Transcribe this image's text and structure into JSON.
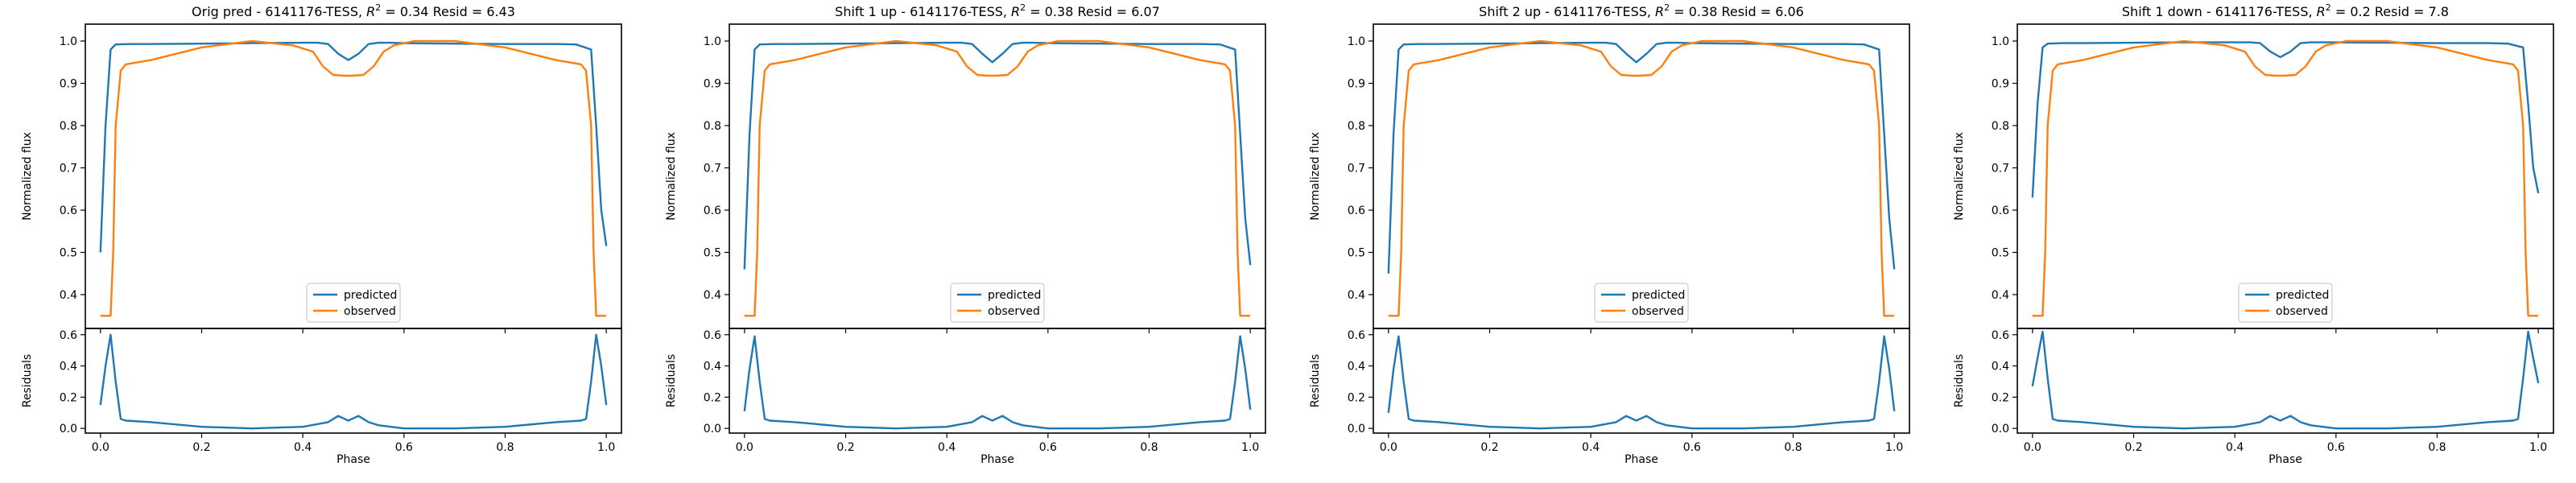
{
  "chart_data": [
    {
      "type": "line",
      "title": "Orig pred - 6141176-TESS, R² = 0.34 Resid = 6.43",
      "title_parts": {
        "prefix": "Orig pred - 6141176-TESS, ",
        "r2_symbol": "R",
        "r2_exp": "2",
        "r2_value": " = 0.34 Resid = 6.43"
      },
      "top": {
        "ylabel": "Normalized flux",
        "ylim": [
          0.32,
          1.04
        ],
        "yticks": [
          "0.4",
          "0.5",
          "0.6",
          "0.7",
          "0.8",
          "0.9",
          "1.0"
        ],
        "grid": false,
        "legend": {
          "placement": "lower center",
          "entries": [
            "predicted",
            "observed"
          ]
        },
        "series": [
          {
            "name": "predicted",
            "color": "#1f77b4",
            "x": [
              0.0,
              0.01,
              0.02,
              0.03,
              0.06,
              0.1,
              0.2,
              0.3,
              0.4,
              0.43,
              0.45,
              0.47,
              0.49,
              0.51,
              0.53,
              0.55,
              0.57,
              0.6,
              0.7,
              0.8,
              0.9,
              0.94,
              0.97,
              0.98,
              0.99,
              1.0
            ],
            "y": [
              0.5,
              0.8,
              0.98,
              0.992,
              0.993,
              0.993,
              0.994,
              0.995,
              0.996,
              0.996,
              0.993,
              0.97,
              0.955,
              0.97,
              0.993,
              0.996,
              0.996,
              0.995,
              0.994,
              0.993,
              0.993,
              0.992,
              0.98,
              0.8,
              0.6,
              0.515
            ]
          },
          {
            "name": "observed",
            "color": "#ff7f0e",
            "x": [
              0.0,
              0.02,
              0.025,
              0.03,
              0.04,
              0.05,
              0.1,
              0.2,
              0.3,
              0.38,
              0.42,
              0.44,
              0.46,
              0.48,
              0.5,
              0.52,
              0.54,
              0.56,
              0.58,
              0.62,
              0.7,
              0.8,
              0.9,
              0.95,
              0.96,
              0.97,
              0.975,
              0.98,
              1.0
            ],
            "y": [
              0.35,
              0.35,
              0.5,
              0.8,
              0.93,
              0.945,
              0.955,
              0.985,
              1.0,
              0.99,
              0.975,
              0.94,
              0.92,
              0.918,
              0.918,
              0.92,
              0.94,
              0.975,
              0.99,
              1.0,
              1.0,
              0.985,
              0.955,
              0.945,
              0.93,
              0.8,
              0.5,
              0.35,
              0.35
            ]
          }
        ]
      },
      "bottom": {
        "xlabel": "Phase",
        "ylabel": "Residuals",
        "xlim": [
          -0.03,
          1.03
        ],
        "ylim": [
          -0.03,
          0.64
        ],
        "xticks": [
          "0.0",
          "0.2",
          "0.4",
          "0.6",
          "0.8",
          "1.0"
        ],
        "yticks": [
          "0.0",
          "0.2",
          "0.4",
          "0.6"
        ],
        "series": [
          {
            "name": "residuals",
            "color": "#1f77b4",
            "x": [
              0.0,
              0.01,
              0.02,
              0.03,
              0.04,
              0.05,
              0.1,
              0.2,
              0.3,
              0.4,
              0.45,
              0.47,
              0.49,
              0.51,
              0.53,
              0.55,
              0.6,
              0.7,
              0.8,
              0.9,
              0.95,
              0.96,
              0.97,
              0.98,
              0.99,
              1.0
            ],
            "y": [
              0.15,
              0.4,
              0.6,
              0.3,
              0.06,
              0.05,
              0.04,
              0.01,
              0.0,
              0.01,
              0.04,
              0.08,
              0.05,
              0.08,
              0.04,
              0.02,
              0.0,
              0.0,
              0.01,
              0.04,
              0.05,
              0.06,
              0.3,
              0.6,
              0.4,
              0.15
            ]
          }
        ]
      }
    },
    {
      "type": "line",
      "title": "Shift 1 up - 6141176-TESS, R² = 0.38 Resid = 6.07",
      "title_parts": {
        "prefix": "Shift 1 up - 6141176-TESS, ",
        "r2_symbol": "R",
        "r2_exp": "2",
        "r2_value": " = 0.38 Resid = 6.07"
      },
      "top": {
        "ylabel": "Normalized flux",
        "ylim": [
          0.32,
          1.04
        ],
        "yticks": [
          "0.4",
          "0.5",
          "0.6",
          "0.7",
          "0.8",
          "0.9",
          "1.0"
        ],
        "grid": false,
        "legend": {
          "placement": "lower center",
          "entries": [
            "predicted",
            "observed"
          ]
        },
        "series": [
          {
            "name": "predicted",
            "color": "#1f77b4",
            "x": [
              0.0,
              0.01,
              0.02,
              0.03,
              0.06,
              0.1,
              0.2,
              0.3,
              0.4,
              0.43,
              0.45,
              0.47,
              0.49,
              0.51,
              0.53,
              0.55,
              0.57,
              0.6,
              0.7,
              0.8,
              0.9,
              0.94,
              0.97,
              0.98,
              0.99,
              1.0
            ],
            "y": [
              0.46,
              0.78,
              0.98,
              0.992,
              0.993,
              0.993,
              0.994,
              0.995,
              0.996,
              0.996,
              0.993,
              0.97,
              0.95,
              0.97,
              0.993,
              0.996,
              0.996,
              0.995,
              0.994,
              0.993,
              0.993,
              0.992,
              0.98,
              0.78,
              0.58,
              0.47
            ]
          },
          {
            "name": "observed",
            "color": "#ff7f0e",
            "x": [
              0.0,
              0.02,
              0.025,
              0.03,
              0.04,
              0.05,
              0.1,
              0.2,
              0.3,
              0.38,
              0.42,
              0.44,
              0.46,
              0.48,
              0.5,
              0.52,
              0.54,
              0.56,
              0.58,
              0.62,
              0.7,
              0.8,
              0.9,
              0.95,
              0.96,
              0.97,
              0.975,
              0.98,
              1.0
            ],
            "y": [
              0.35,
              0.35,
              0.5,
              0.8,
              0.93,
              0.945,
              0.955,
              0.985,
              1.0,
              0.99,
              0.975,
              0.94,
              0.92,
              0.918,
              0.918,
              0.92,
              0.94,
              0.975,
              0.99,
              1.0,
              1.0,
              0.985,
              0.955,
              0.945,
              0.93,
              0.8,
              0.5,
              0.35,
              0.35
            ]
          }
        ]
      },
      "bottom": {
        "xlabel": "Phase",
        "ylabel": "Residuals",
        "xlim": [
          -0.03,
          1.03
        ],
        "ylim": [
          -0.03,
          0.64
        ],
        "xticks": [
          "0.0",
          "0.2",
          "0.4",
          "0.6",
          "0.8",
          "1.0"
        ],
        "yticks": [
          "0.0",
          "0.2",
          "0.4",
          "0.6"
        ],
        "series": [
          {
            "name": "residuals",
            "color": "#1f77b4",
            "x": [
              0.0,
              0.01,
              0.02,
              0.03,
              0.04,
              0.05,
              0.1,
              0.2,
              0.3,
              0.4,
              0.45,
              0.47,
              0.49,
              0.51,
              0.53,
              0.55,
              0.6,
              0.7,
              0.8,
              0.9,
              0.95,
              0.96,
              0.97,
              0.98,
              0.99,
              1.0
            ],
            "y": [
              0.11,
              0.38,
              0.59,
              0.3,
              0.06,
              0.05,
              0.04,
              0.01,
              0.0,
              0.01,
              0.04,
              0.08,
              0.05,
              0.08,
              0.04,
              0.02,
              0.0,
              0.0,
              0.01,
              0.04,
              0.05,
              0.06,
              0.3,
              0.59,
              0.38,
              0.12
            ]
          }
        ]
      }
    },
    {
      "type": "line",
      "title": "Shift 2 up - 6141176-TESS, R² = 0.38 Resid = 6.06",
      "title_parts": {
        "prefix": "Shift 2 up - 6141176-TESS, ",
        "r2_symbol": "R",
        "r2_exp": "2",
        "r2_value": " = 0.38 Resid = 6.06"
      },
      "top": {
        "ylabel": "Normalized flux",
        "ylim": [
          0.32,
          1.04
        ],
        "yticks": [
          "0.4",
          "0.5",
          "0.6",
          "0.7",
          "0.8",
          "0.9",
          "1.0"
        ],
        "grid": false,
        "legend": {
          "placement": "lower center",
          "entries": [
            "predicted",
            "observed"
          ]
        },
        "series": [
          {
            "name": "predicted",
            "color": "#1f77b4",
            "x": [
              0.0,
              0.01,
              0.02,
              0.03,
              0.06,
              0.1,
              0.2,
              0.3,
              0.4,
              0.43,
              0.45,
              0.47,
              0.49,
              0.51,
              0.53,
              0.55,
              0.57,
              0.6,
              0.7,
              0.8,
              0.9,
              0.94,
              0.97,
              0.98,
              0.99,
              1.0
            ],
            "y": [
              0.45,
              0.78,
              0.98,
              0.992,
              0.993,
              0.993,
              0.994,
              0.995,
              0.996,
              0.996,
              0.993,
              0.97,
              0.95,
              0.97,
              0.993,
              0.996,
              0.996,
              0.995,
              0.994,
              0.993,
              0.993,
              0.992,
              0.98,
              0.78,
              0.58,
              0.46
            ]
          },
          {
            "name": "observed",
            "color": "#ff7f0e",
            "x": [
              0.0,
              0.02,
              0.025,
              0.03,
              0.04,
              0.05,
              0.1,
              0.2,
              0.3,
              0.38,
              0.42,
              0.44,
              0.46,
              0.48,
              0.5,
              0.52,
              0.54,
              0.56,
              0.58,
              0.62,
              0.7,
              0.8,
              0.9,
              0.95,
              0.96,
              0.97,
              0.975,
              0.98,
              1.0
            ],
            "y": [
              0.35,
              0.35,
              0.5,
              0.8,
              0.93,
              0.945,
              0.955,
              0.985,
              1.0,
              0.99,
              0.975,
              0.94,
              0.92,
              0.918,
              0.918,
              0.92,
              0.94,
              0.975,
              0.99,
              1.0,
              1.0,
              0.985,
              0.955,
              0.945,
              0.93,
              0.8,
              0.5,
              0.35,
              0.35
            ]
          }
        ]
      },
      "bottom": {
        "xlabel": "Phase",
        "ylabel": "Residuals",
        "xlim": [
          -0.03,
          1.03
        ],
        "ylim": [
          -0.03,
          0.64
        ],
        "xticks": [
          "0.0",
          "0.2",
          "0.4",
          "0.6",
          "0.8",
          "1.0"
        ],
        "yticks": [
          "0.0",
          "0.2",
          "0.4",
          "0.6"
        ],
        "series": [
          {
            "name": "residuals",
            "color": "#1f77b4",
            "x": [
              0.0,
              0.01,
              0.02,
              0.03,
              0.04,
              0.05,
              0.1,
              0.2,
              0.3,
              0.4,
              0.45,
              0.47,
              0.49,
              0.51,
              0.53,
              0.55,
              0.6,
              0.7,
              0.8,
              0.9,
              0.95,
              0.96,
              0.97,
              0.98,
              0.99,
              1.0
            ],
            "y": [
              0.1,
              0.38,
              0.59,
              0.3,
              0.06,
              0.05,
              0.04,
              0.01,
              0.0,
              0.01,
              0.04,
              0.08,
              0.05,
              0.08,
              0.04,
              0.02,
              0.0,
              0.0,
              0.01,
              0.04,
              0.05,
              0.06,
              0.3,
              0.59,
              0.38,
              0.11
            ]
          }
        ]
      }
    },
    {
      "type": "line",
      "title": "Shift 1 down - 6141176-TESS, R² = 0.2 Resid = 7.8",
      "title_parts": {
        "prefix": "Shift 1 down - 6141176-TESS, ",
        "r2_symbol": "R",
        "r2_exp": "2",
        "r2_value": " = 0.2 Resid = 7.8"
      },
      "top": {
        "ylabel": "Normalized flux",
        "ylim": [
          0.32,
          1.04
        ],
        "yticks": [
          "0.4",
          "0.5",
          "0.6",
          "0.7",
          "0.8",
          "0.9",
          "1.0"
        ],
        "grid": false,
        "legend": {
          "placement": "lower center",
          "entries": [
            "predicted",
            "observed"
          ]
        },
        "series": [
          {
            "name": "predicted",
            "color": "#1f77b4",
            "x": [
              0.0,
              0.01,
              0.02,
              0.03,
              0.06,
              0.1,
              0.2,
              0.3,
              0.4,
              0.43,
              0.45,
              0.47,
              0.49,
              0.51,
              0.53,
              0.55,
              0.57,
              0.6,
              0.7,
              0.8,
              0.9,
              0.94,
              0.97,
              0.98,
              0.99,
              1.0
            ],
            "y": [
              0.63,
              0.85,
              0.985,
              0.994,
              0.995,
              0.995,
              0.996,
              0.997,
              0.997,
              0.997,
              0.995,
              0.975,
              0.962,
              0.975,
              0.995,
              0.997,
              0.997,
              0.997,
              0.996,
              0.995,
              0.995,
              0.994,
              0.985,
              0.85,
              0.7,
              0.64
            ]
          },
          {
            "name": "observed",
            "color": "#ff7f0e",
            "x": [
              0.0,
              0.02,
              0.025,
              0.03,
              0.04,
              0.05,
              0.1,
              0.2,
              0.3,
              0.38,
              0.42,
              0.44,
              0.46,
              0.48,
              0.5,
              0.52,
              0.54,
              0.56,
              0.58,
              0.62,
              0.7,
              0.8,
              0.9,
              0.95,
              0.96,
              0.97,
              0.975,
              0.98,
              1.0
            ],
            "y": [
              0.35,
              0.35,
              0.5,
              0.8,
              0.93,
              0.945,
              0.955,
              0.985,
              1.0,
              0.99,
              0.975,
              0.94,
              0.92,
              0.918,
              0.918,
              0.92,
              0.94,
              0.975,
              0.99,
              1.0,
              1.0,
              0.985,
              0.955,
              0.945,
              0.93,
              0.8,
              0.5,
              0.35,
              0.35
            ]
          }
        ]
      },
      "bottom": {
        "xlabel": "Phase",
        "ylabel": "Residuals",
        "xlim": [
          -0.03,
          1.03
        ],
        "ylim": [
          -0.03,
          0.64
        ],
        "xticks": [
          "0.0",
          "0.2",
          "0.4",
          "0.6",
          "0.8",
          "1.0"
        ],
        "yticks": [
          "0.0",
          "0.2",
          "0.4",
          "0.6"
        ],
        "series": [
          {
            "name": "residuals",
            "color": "#1f77b4",
            "x": [
              0.0,
              0.01,
              0.02,
              0.03,
              0.04,
              0.05,
              0.1,
              0.2,
              0.3,
              0.4,
              0.45,
              0.47,
              0.49,
              0.51,
              0.53,
              0.55,
              0.6,
              0.7,
              0.8,
              0.9,
              0.95,
              0.96,
              0.97,
              0.98,
              0.99,
              1.0
            ],
            "y": [
              0.27,
              0.45,
              0.62,
              0.32,
              0.06,
              0.05,
              0.04,
              0.01,
              0.0,
              0.01,
              0.04,
              0.08,
              0.05,
              0.08,
              0.04,
              0.02,
              0.0,
              0.0,
              0.01,
              0.04,
              0.05,
              0.06,
              0.32,
              0.62,
              0.45,
              0.29
            ]
          }
        ]
      }
    }
  ]
}
